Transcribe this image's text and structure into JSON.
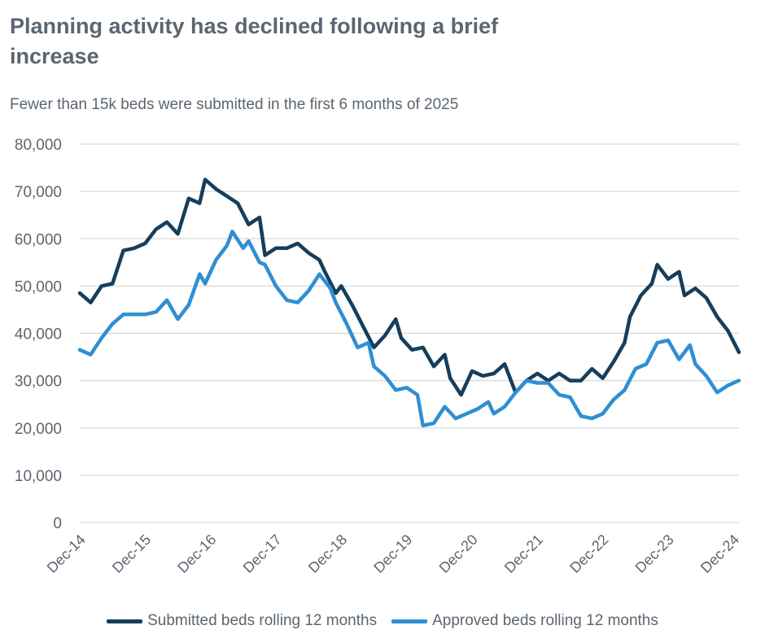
{
  "chart_data": {
    "type": "line",
    "title": "Planning activity has declined following a brief increase",
    "subtitle": "Fewer than 15k beds were submitted in the first 6 months of 2025",
    "xlabel": "",
    "ylabel": "",
    "ylim": [
      0,
      80000
    ],
    "y_ticks": [
      "0",
      "10,000",
      "20,000",
      "30,000",
      "40,000",
      "50,000",
      "60,000",
      "70,000",
      "80,000"
    ],
    "x_ticks": [
      "Dec-14",
      "Dec-15",
      "Dec-16",
      "Dec-17",
      "Dec-18",
      "Dec-19",
      "Dec-20",
      "Dec-21",
      "Dec-22",
      "Dec-23",
      "Dec-24"
    ],
    "grid": true,
    "legend_position": "bottom",
    "series": [
      {
        "name": "Submitted beds rolling 12 months",
        "color": "#153e5c",
        "points": [
          [
            "Dec-14",
            48500
          ],
          [
            "Feb-15",
            46500
          ],
          [
            "Apr-15",
            50000
          ],
          [
            "Jun-15",
            50500
          ],
          [
            "Aug-15",
            57500
          ],
          [
            "Oct-15",
            58000
          ],
          [
            "Dec-15",
            59000
          ],
          [
            "Feb-16",
            62000
          ],
          [
            "Apr-16",
            63500
          ],
          [
            "Jun-16",
            61000
          ],
          [
            "Aug-16",
            68500
          ],
          [
            "Oct-16",
            67500
          ],
          [
            "Nov-16",
            72500
          ],
          [
            "Jan-17",
            70500
          ],
          [
            "Mar-17",
            69000
          ],
          [
            "May-17",
            67500
          ],
          [
            "Jul-17",
            63000
          ],
          [
            "Sep-17",
            64500
          ],
          [
            "Oct-17",
            56500
          ],
          [
            "Dec-17",
            58000
          ],
          [
            "Feb-18",
            58000
          ],
          [
            "Apr-18",
            59000
          ],
          [
            "Jun-18",
            57000
          ],
          [
            "Aug-18",
            55500
          ],
          [
            "Sep-18",
            53000
          ],
          [
            "Nov-18",
            48500
          ],
          [
            "Dec-18",
            50000
          ],
          [
            "Feb-19",
            46000
          ],
          [
            "Apr-19",
            41500
          ],
          [
            "Jun-19",
            37000
          ],
          [
            "Aug-19",
            39500
          ],
          [
            "Oct-19",
            43000
          ],
          [
            "Nov-19",
            39000
          ],
          [
            "Jan-20",
            36500
          ],
          [
            "Mar-20",
            37000
          ],
          [
            "May-20",
            33000
          ],
          [
            "Jul-20",
            35500
          ],
          [
            "Aug-20",
            30500
          ],
          [
            "Oct-20",
            27000
          ],
          [
            "Dec-20",
            32000
          ],
          [
            "Feb-21",
            31000
          ],
          [
            "Apr-21",
            31500
          ],
          [
            "Jun-21",
            33500
          ],
          [
            "Aug-21",
            27500
          ],
          [
            "Oct-21",
            30000
          ],
          [
            "Dec-21",
            31500
          ],
          [
            "Feb-22",
            30000
          ],
          [
            "Apr-22",
            31500
          ],
          [
            "Jun-22",
            30000
          ],
          [
            "Aug-22",
            30000
          ],
          [
            "Oct-22",
            32500
          ],
          [
            "Dec-22",
            30500
          ],
          [
            "Feb-23",
            34000
          ],
          [
            "Apr-23",
            38000
          ],
          [
            "May-23",
            43500
          ],
          [
            "Jul-23",
            48000
          ],
          [
            "Sep-23",
            50500
          ],
          [
            "Oct-23",
            54500
          ],
          [
            "Dec-23",
            51500
          ],
          [
            "Feb-24",
            53000
          ],
          [
            "Mar-24",
            48000
          ],
          [
            "May-24",
            49500
          ],
          [
            "Jul-24",
            47500
          ],
          [
            "Sep-24",
            43500
          ],
          [
            "Nov-24",
            40500
          ],
          [
            "Jan-25",
            36000
          ]
        ]
      },
      {
        "name": "Approved beds rolling 12 months",
        "color": "#2f8fd2",
        "points": [
          [
            "Dec-14",
            36500
          ],
          [
            "Feb-15",
            35500
          ],
          [
            "Apr-15",
            39000
          ],
          [
            "Jun-15",
            42000
          ],
          [
            "Aug-15",
            44000
          ],
          [
            "Oct-15",
            44000
          ],
          [
            "Dec-15",
            44000
          ],
          [
            "Feb-16",
            44500
          ],
          [
            "Apr-16",
            47000
          ],
          [
            "Jun-16",
            43000
          ],
          [
            "Aug-16",
            46000
          ],
          [
            "Oct-16",
            52500
          ],
          [
            "Nov-16",
            50500
          ],
          [
            "Jan-17",
            55500
          ],
          [
            "Mar-17",
            58500
          ],
          [
            "Apr-17",
            61500
          ],
          [
            "Jun-17",
            58000
          ],
          [
            "Jul-17",
            59500
          ],
          [
            "Sep-17",
            55000
          ],
          [
            "Oct-17",
            54500
          ],
          [
            "Dec-17",
            50000
          ],
          [
            "Feb-18",
            47000
          ],
          [
            "Apr-18",
            46500
          ],
          [
            "Jun-18",
            49000
          ],
          [
            "Aug-18",
            52500
          ],
          [
            "Oct-18",
            49500
          ],
          [
            "Nov-18",
            46500
          ],
          [
            "Jan-19",
            42000
          ],
          [
            "Mar-19",
            37000
          ],
          [
            "May-19",
            38000
          ],
          [
            "Jun-19",
            33000
          ],
          [
            "Aug-19",
            31000
          ],
          [
            "Oct-19",
            28000
          ],
          [
            "Dec-19",
            28500
          ],
          [
            "Feb-20",
            27000
          ],
          [
            "Mar-20",
            20500
          ],
          [
            "May-20",
            21000
          ],
          [
            "Jul-20",
            24500
          ],
          [
            "Sep-20",
            22000
          ],
          [
            "Nov-20",
            23000
          ],
          [
            "Jan-21",
            24000
          ],
          [
            "Mar-21",
            25500
          ],
          [
            "Apr-21",
            23000
          ],
          [
            "Jun-21",
            24500
          ],
          [
            "Aug-21",
            27500
          ],
          [
            "Oct-21",
            30000
          ],
          [
            "Dec-21",
            29500
          ],
          [
            "Feb-22",
            29500
          ],
          [
            "Apr-22",
            27000
          ],
          [
            "Jun-22",
            26500
          ],
          [
            "Aug-22",
            22500
          ],
          [
            "Oct-22",
            22000
          ],
          [
            "Dec-22",
            23000
          ],
          [
            "Feb-23",
            26000
          ],
          [
            "Apr-23",
            28000
          ],
          [
            "Jun-23",
            32500
          ],
          [
            "Aug-23",
            33500
          ],
          [
            "Oct-23",
            38000
          ],
          [
            "Dec-23",
            38500
          ],
          [
            "Feb-24",
            34500
          ],
          [
            "Apr-24",
            37500
          ],
          [
            "May-24",
            33500
          ],
          [
            "Jul-24",
            31000
          ],
          [
            "Sep-24",
            27500
          ],
          [
            "Nov-24",
            29000
          ],
          [
            "Jan-25",
            30000
          ]
        ]
      }
    ]
  }
}
